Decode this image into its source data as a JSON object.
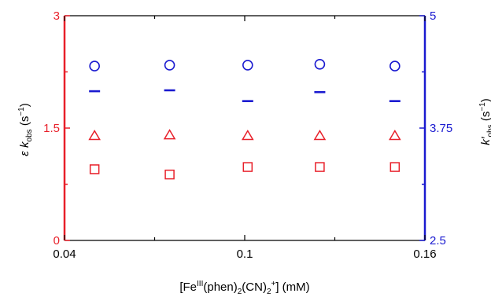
{
  "chart_data": {
    "type": "scatter",
    "x_axis": {
      "label_parts": [
        "[Fe",
        "III",
        "(phen)",
        "2",
        "(CN)",
        "2",
        "+",
        "] (mM)"
      ],
      "min": 0.04,
      "max": 0.16,
      "ticks": [
        0.04,
        0.1,
        0.16
      ],
      "tick_labels": [
        "0.04",
        "0.1",
        "0.16"
      ],
      "minor_ticks": [
        0.07,
        0.13
      ]
    },
    "y_left": {
      "label_parts": [
        "ε k",
        "obs",
        " (s",
        "−1",
        ")"
      ],
      "min": 0,
      "max": 3,
      "ticks": [
        0,
        1.5,
        3
      ],
      "tick_labels": [
        "0",
        "1.5",
        "3"
      ],
      "minor_ticks": [
        0.75,
        2.25
      ],
      "color": "#e8202a"
    },
    "y_right": {
      "label_parts": [
        "k′",
        "obs",
        " (s",
        "−1",
        ")"
      ],
      "min": 2.5,
      "max": 5,
      "ticks": [
        2.5,
        3.75,
        5
      ],
      "tick_labels": [
        "2.5",
        "3.75",
        "5"
      ],
      "minor_ticks": [
        3.125,
        4.375
      ],
      "color": "#1a1ad0"
    },
    "series": [
      {
        "marker": "circle",
        "axis": "right",
        "color": "#1a1ad0",
        "x": [
          0.05,
          0.075,
          0.101,
          0.125,
          0.15
        ],
        "y": [
          4.44,
          4.45,
          4.45,
          4.46,
          4.44
        ]
      },
      {
        "marker": "dash",
        "axis": "right",
        "color": "#1a1ad0",
        "x": [
          0.05,
          0.075,
          0.101,
          0.125,
          0.15
        ],
        "y": [
          4.16,
          4.17,
          4.05,
          4.15,
          4.05
        ]
      },
      {
        "marker": "triangle",
        "axis": "left",
        "color": "#e8202a",
        "x": [
          0.05,
          0.075,
          0.101,
          0.125,
          0.15
        ],
        "y": [
          1.4,
          1.41,
          1.4,
          1.4,
          1.4
        ]
      },
      {
        "marker": "square",
        "axis": "left",
        "color": "#e8202a",
        "x": [
          0.05,
          0.075,
          0.101,
          0.125,
          0.15
        ],
        "y": [
          0.95,
          0.88,
          0.98,
          0.98,
          0.98
        ]
      }
    ],
    "grid": false,
    "legend": "none"
  }
}
